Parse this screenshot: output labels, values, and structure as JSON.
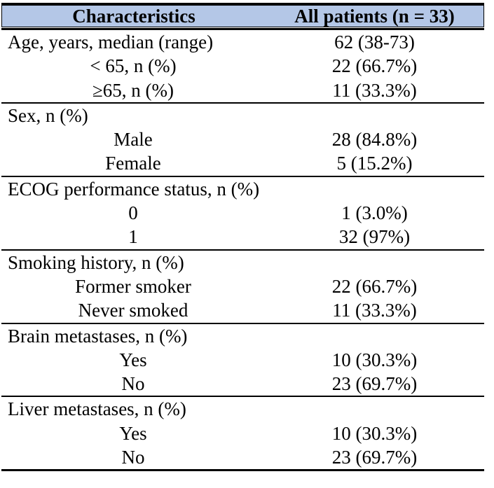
{
  "page": {
    "background_color": "#ffffff",
    "text_color": "#000000"
  },
  "table": {
    "header": {
      "col1": "Characteristics",
      "col2": "All patients (n = 33)",
      "background": "#b4c7e7",
      "border_color": "#000000"
    },
    "rows": [
      {
        "label": "Age, years, median (range)",
        "value": "62 (38-73)",
        "type": "section",
        "divider": false
      },
      {
        "label": "< 65, n (%)",
        "value": "22 (66.7%)",
        "type": "sub",
        "divider": false
      },
      {
        "label": "≥65, n (%)",
        "value": "11 (33.3%)",
        "type": "sub",
        "divider": false
      },
      {
        "label": "Sex, n (%)",
        "value": "",
        "type": "section",
        "divider": true
      },
      {
        "label": "Male",
        "value": "28 (84.8%)",
        "type": "sub",
        "divider": false
      },
      {
        "label": "Female",
        "value": "5 (15.2%)",
        "type": "sub",
        "divider": false
      },
      {
        "label": "ECOG performance status, n (%)",
        "value": "",
        "type": "section",
        "divider": true
      },
      {
        "label": "0",
        "value": "1 (3.0%)",
        "type": "sub",
        "divider": false
      },
      {
        "label": "1",
        "value": "32 (97%)",
        "type": "sub",
        "divider": false
      },
      {
        "label": "Smoking history, n (%)",
        "value": "",
        "type": "section",
        "divider": true
      },
      {
        "label": "Former smoker",
        "value": "22 (66.7%)",
        "type": "sub",
        "divider": false
      },
      {
        "label": "Never smoked",
        "value": "11 (33.3%)",
        "type": "sub",
        "divider": false
      },
      {
        "label": "Brain metastases, n (%)",
        "value": "",
        "type": "section",
        "divider": true
      },
      {
        "label": "Yes",
        "value": "10 (30.3%)",
        "type": "sub",
        "divider": false
      },
      {
        "label": "No",
        "value": "23 (69.7%)",
        "type": "sub",
        "divider": false
      },
      {
        "label": "Liver metastases, n (%)",
        "value": "",
        "type": "section",
        "divider": true
      },
      {
        "label": "Yes",
        "value": "10 (30.3%)",
        "type": "sub",
        "divider": false
      },
      {
        "label": "No",
        "value": "23 (69.7%)",
        "type": "sub",
        "divider": false
      }
    ]
  }
}
